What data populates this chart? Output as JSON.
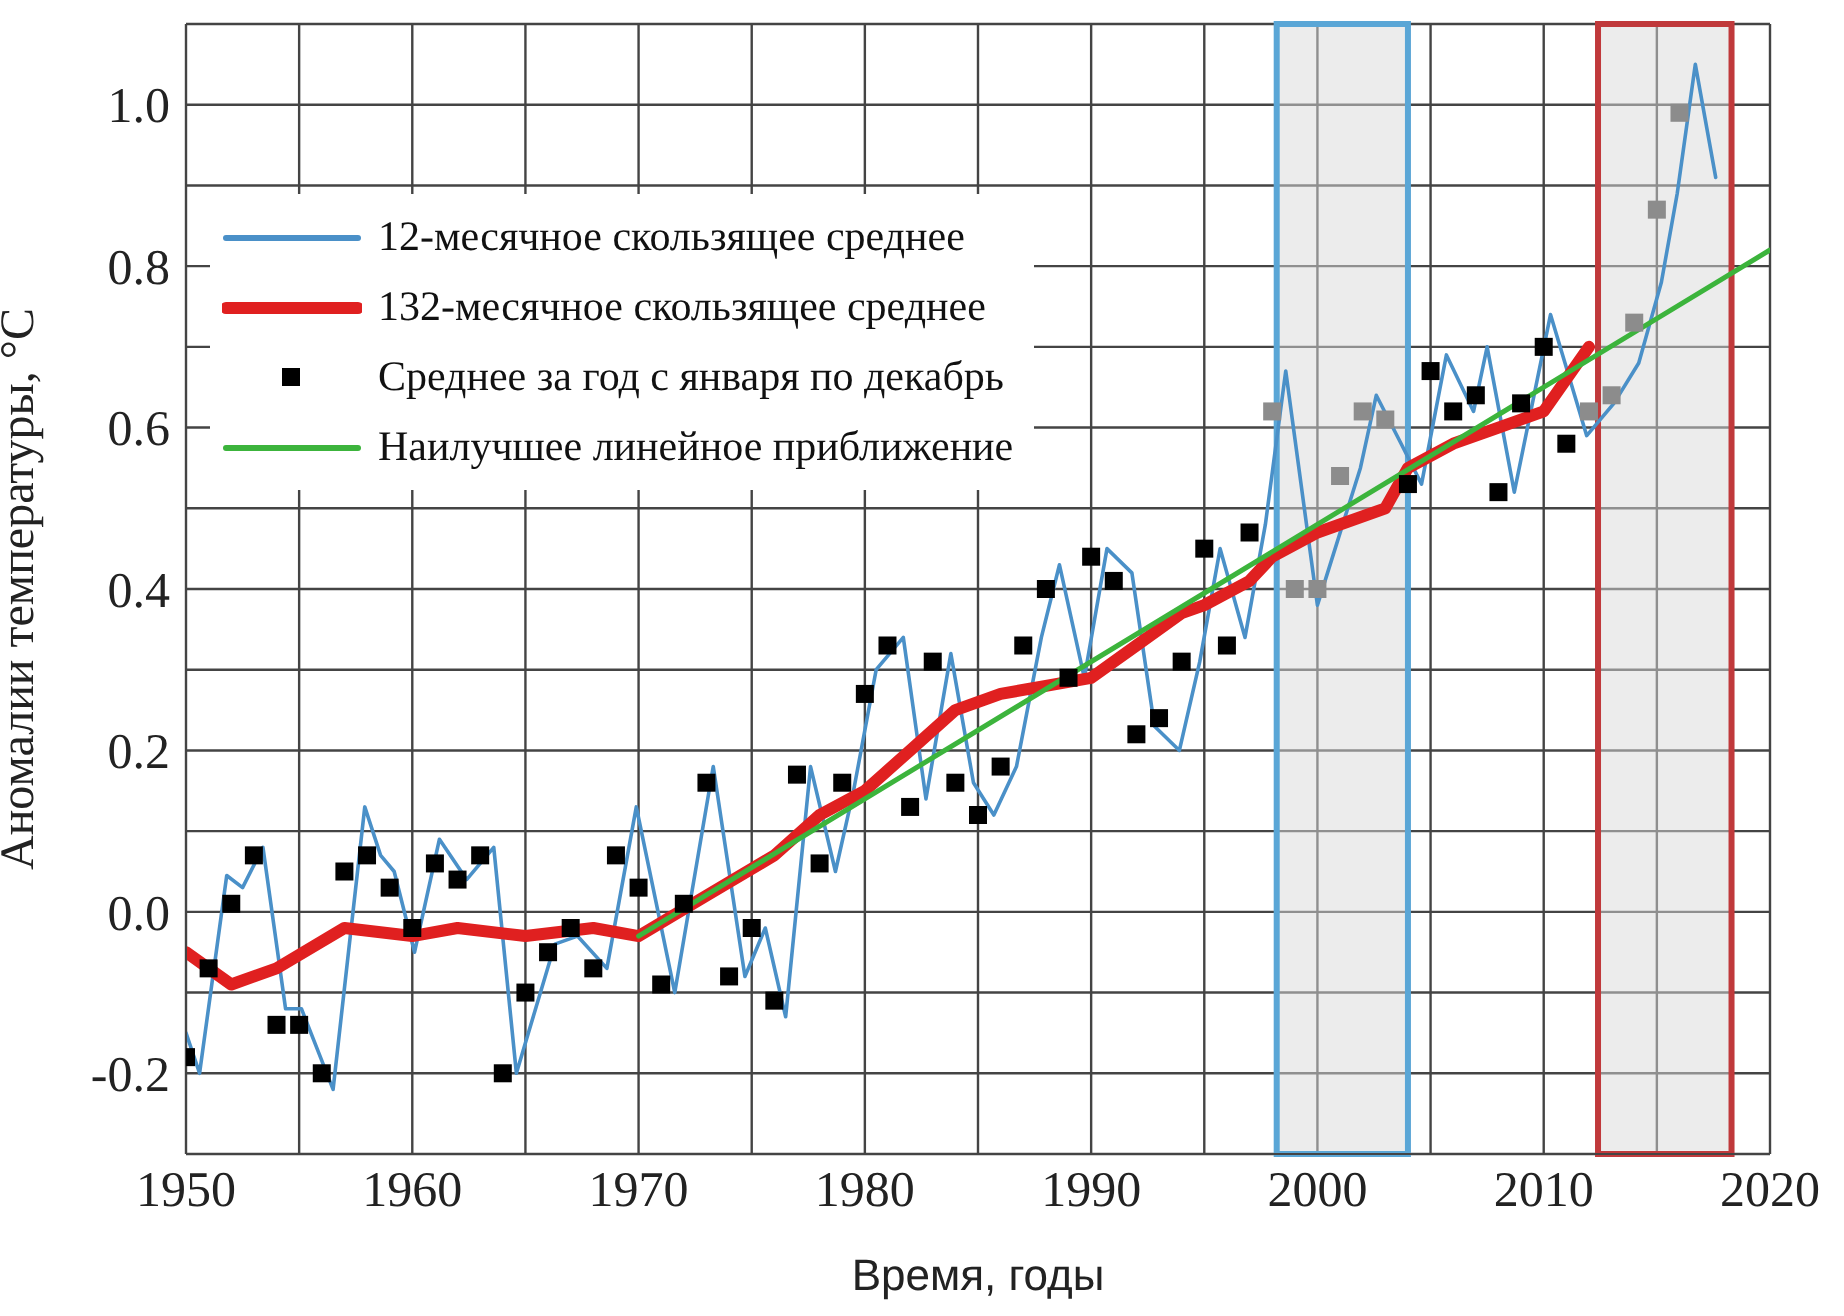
{
  "chart_data": {
    "type": "line",
    "xlabel": "Время, годы",
    "ylabel": "Аномалии температуры, °C",
    "xlim": [
      1950,
      2020
    ],
    "xticks": [
      1950,
      {
        "value": 1955,
        "label": null
      },
      1960,
      {
        "value": 1965,
        "label": null
      },
      1970,
      {
        "value": 1975,
        "label": null
      },
      1980,
      {
        "value": 1985,
        "label": null
      },
      1990,
      {
        "value": 1995,
        "label": null
      },
      2000,
      {
        "value": 2005,
        "label": null
      },
      2010,
      {
        "value": 2015,
        "label": null
      },
      2020
    ],
    "ylim": [
      -0.3,
      1.1
    ],
    "yticks": [
      {
        "value": -0.3,
        "label": null
      },
      {
        "value": -0.2,
        "label": "-0.2"
      },
      {
        "value": -0.1,
        "label": null
      },
      {
        "value": 0,
        "label": "0.0"
      },
      {
        "value": 0.1,
        "label": null
      },
      {
        "value": 0.2,
        "label": "0.2"
      },
      {
        "value": 0.3,
        "label": null
      },
      {
        "value": 0.4,
        "label": "0.4"
      },
      {
        "value": 0.5,
        "label": null
      },
      {
        "value": 0.6,
        "label": "0.6"
      },
      {
        "value": 0.7,
        "label": null
      },
      {
        "value": 0.8,
        "label": "0.8"
      },
      {
        "value": 0.9,
        "label": null
      },
      {
        "value": 1,
        "label": "1.0"
      },
      {
        "value": 1.1,
        "label": null
      }
    ],
    "grid": true,
    "legend": "top left",
    "bands": [
      {
        "axis": "x",
        "from": 1998.2,
        "to": 2004,
        "color": "#5aa6d6"
      },
      {
        "axis": "x",
        "from": 2012.4,
        "to": 2018.3,
        "color": "#c0393b"
      }
    ],
    "series": [
      {
        "name": "12-месячное скользящее среднее",
        "color": "#4a90c8",
        "x": [
          1950,
          1950.6,
          1951.8,
          1952.5,
          1953.4,
          1954.4,
          1955.1,
          1956.5,
          1957.9,
          1958.6,
          1959.2,
          1960.1,
          1961.2,
          1962.4,
          1963.6,
          1964.6,
          1966.3,
          1967.3,
          1968.6,
          1969.9,
          1971.6,
          1973.3,
          1974.7,
          1975.6,
          1976.5,
          1977.6,
          1978.7,
          1979.5,
          1980.5,
          1981.7,
          1982.7,
          1983.8,
          1984.8,
          1985.7,
          1986.7,
          1987.8,
          1988.6,
          1989.7,
          1990.7,
          1991.8,
          1992.8,
          1993.9,
          1994.8,
          1995.7,
          1996.8,
          1997.7,
          1998.6,
          2000,
          2001.9,
          2002.6,
          2003.7,
          2004.6,
          2005.7,
          2006.9,
          2007.5,
          2008.7,
          2010.3,
          2011.9,
          2013.1,
          2014.2,
          2015.2,
          2015.9,
          2016.7,
          2017.6
        ],
        "values": [
          -0.15,
          -0.2,
          0.045,
          0.03,
          0.08,
          -0.12,
          -0.12,
          -0.22,
          0.13,
          0.07,
          0.05,
          -0.05,
          0.09,
          0.04,
          0.08,
          -0.2,
          -0.04,
          -0.03,
          -0.07,
          0.13,
          -0.1,
          0.18,
          -0.08,
          -0.02,
          -0.13,
          0.18,
          0.05,
          0.15,
          0.3,
          0.34,
          0.14,
          0.32,
          0.16,
          0.12,
          0.18,
          0.34,
          0.43,
          0.29,
          0.45,
          0.42,
          0.23,
          0.2,
          0.31,
          0.45,
          0.34,
          0.48,
          0.67,
          0.38,
          0.55,
          0.64,
          0.58,
          0.53,
          0.69,
          0.62,
          0.7,
          0.52,
          0.74,
          0.59,
          0.63,
          0.68,
          0.78,
          0.89,
          1.05,
          0.91
        ]
      },
      {
        "name": "132-месячное скользящее среднее",
        "color": "#e02020",
        "x": [
          1950,
          1952,
          1954,
          1957,
          1960,
          1962,
          1965,
          1968,
          1970,
          1973,
          1976,
          1978,
          1980,
          1982,
          1984,
          1986,
          1988,
          1990,
          1992,
          1994,
          1995,
          1997,
          1998,
          2000,
          2003,
          2004,
          2006,
          2008,
          2010,
          2012
        ],
        "values": [
          -0.05,
          -0.09,
          -0.07,
          -0.02,
          -0.03,
          -0.02,
          -0.03,
          -0.02,
          -0.03,
          0.02,
          0.07,
          0.12,
          0.15,
          0.2,
          0.25,
          0.27,
          0.28,
          0.29,
          0.33,
          0.37,
          0.38,
          0.41,
          0.44,
          0.47,
          0.5,
          0.55,
          0.58,
          0.6,
          0.62,
          0.7
        ]
      },
      {
        "type": "scatter",
        "name": "Среднее за год с января по декабрь",
        "color": "#000000",
        "marker": "square",
        "x": [
          1950,
          1951,
          1952,
          1953,
          1954,
          1955,
          1956,
          1957,
          1958,
          1959,
          1960,
          1961,
          1962,
          1963,
          1964,
          1965,
          1966,
          1967,
          1968,
          1969,
          1970,
          1971,
          1972,
          1973,
          1974,
          1975,
          1976,
          1977,
          1978,
          1979,
          1980,
          1981,
          1982,
          1983,
          1984,
          1985,
          1986,
          1987,
          1988,
          1989,
          1990,
          1991,
          1992,
          1993,
          1994,
          1995,
          1996,
          1997,
          1998,
          1999,
          2000,
          2001,
          2002,
          2003,
          2004,
          2005,
          2006,
          2007,
          2008,
          2009,
          2010,
          2011,
          2012,
          2013,
          2014,
          2015,
          2016
        ],
        "values": [
          -0.18,
          -0.07,
          0.01,
          0.07,
          -0.14,
          -0.14,
          -0.2,
          0.05,
          0.07,
          0.03,
          -0.02,
          0.06,
          0.04,
          0.07,
          -0.2,
          -0.1,
          -0.05,
          -0.02,
          -0.07,
          0.07,
          0.03,
          -0.09,
          0.01,
          0.16,
          -0.08,
          -0.02,
          -0.11,
          0.17,
          0.06,
          0.16,
          0.27,
          0.33,
          0.13,
          0.31,
          0.16,
          0.12,
          0.18,
          0.33,
          0.4,
          0.29,
          0.44,
          0.41,
          0.22,
          0.24,
          0.31,
          0.45,
          0.33,
          0.47,
          0.62,
          0.4,
          0.4,
          0.54,
          0.62,
          0.61,
          0.53,
          0.67,
          0.62,
          0.64,
          0.52,
          0.63,
          0.7,
          0.58,
          0.62,
          0.64,
          0.73,
          0.87,
          0.99
        ],
        "colors": [
          "#000000",
          "#000000",
          "#000000",
          "#000000",
          "#000000",
          "#000000",
          "#000000",
          "#000000",
          "#000000",
          "#000000",
          "#000000",
          "#000000",
          "#000000",
          "#000000",
          "#000000",
          "#000000",
          "#000000",
          "#000000",
          "#000000",
          "#000000",
          "#000000",
          "#000000",
          "#000000",
          "#000000",
          "#000000",
          "#000000",
          "#000000",
          "#000000",
          "#000000",
          "#000000",
          "#000000",
          "#000000",
          "#000000",
          "#000000",
          "#000000",
          "#000000",
          "#000000",
          "#000000",
          "#000000",
          "#000000",
          "#000000",
          "#000000",
          "#000000",
          "#000000",
          "#000000",
          "#000000",
          "#000000",
          "#000000",
          "#8c8c8c",
          "#8c8c8c",
          "#8c8c8c",
          "#8c8c8c",
          "#8c8c8c",
          "#8c8c8c",
          "#000000",
          "#000000",
          "#000000",
          "#000000",
          "#000000",
          "#000000",
          "#000000",
          "#000000",
          "#8c8c8c",
          "#8c8c8c",
          "#8c8c8c",
          "#8c8c8c",
          "#8c8c8c"
        ]
      },
      {
        "name": "Наилучшее линейное приближение",
        "color": "#3cb43c",
        "x": [
          1970,
          2020
        ],
        "values": [
          -0.03,
          0.82
        ]
      }
    ]
  }
}
